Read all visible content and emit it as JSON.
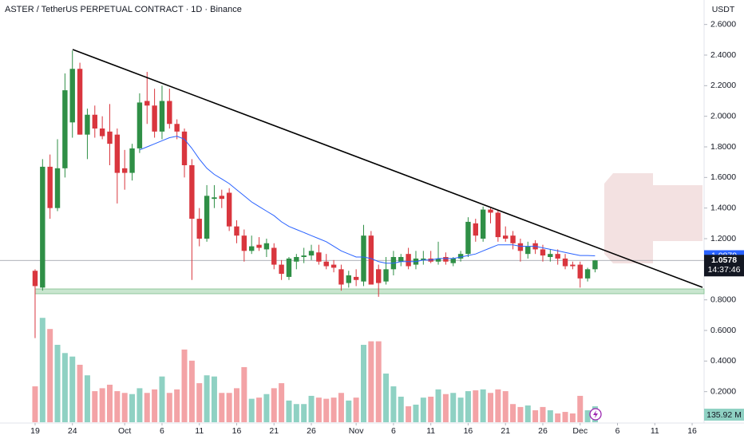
{
  "chart_data": {
    "type": "candlestick",
    "title": "ASTER / TetherUS PERPETUAL CONTRACT · 1D · Binance",
    "currency": "USDT",
    "up_color": "#2f8f46",
    "down_color": "#d9363e",
    "volume_up_color": "#8fd1c3",
    "volume_down_color": "#f3a3a6",
    "open": [
      0.99,
      0.88,
      1.67,
      1.4,
      1.66,
      1.96,
      2.31,
      1.88,
      2.01,
      1.92,
      1.9,
      1.88,
      1.66,
      1.63,
      1.79,
      2.1,
      2.07,
      1.9,
      2.1,
      1.95,
      1.9,
      1.68,
      1.33,
      1.2,
      1.46,
      1.48,
      1.5,
      1.28,
      1.22,
      1.12,
      1.16,
      1.13,
      1.14,
      1.03,
      0.95,
      1.05,
      1.08,
      1.09,
      1.11,
      1.05,
      1.03,
      1.0,
      0.91,
      0.95,
      0.92,
      1.22,
      1.0,
      0.92,
      1.0,
      1.05,
      1.1,
      1.03,
      1.06,
      1.07,
      1.05,
      1.08,
      1.04,
      1.07,
      1.1,
      1.3,
      1.2,
      1.39,
      1.37,
      1.22,
      1.22,
      1.17,
      1.1,
      1.17,
      1.13,
      1.08,
      1.1,
      1.07,
      1.03,
      1.03,
      0.94,
      1.0
    ],
    "high": [
      1.0,
      1.72,
      1.75,
      1.85,
      2.28,
      2.43,
      2.35,
      2.05,
      2.07,
      2.0,
      2.08,
      1.92,
      1.78,
      1.82,
      2.15,
      2.29,
      2.18,
      2.2,
      2.18,
      1.98,
      1.92,
      1.72,
      1.4,
      1.55,
      1.55,
      1.52,
      1.53,
      1.32,
      1.26,
      1.22,
      1.21,
      1.2,
      1.17,
      1.06,
      1.08,
      1.1,
      1.14,
      1.16,
      1.16,
      1.1,
      1.06,
      1.03,
      0.99,
      1.0,
      1.29,
      1.25,
      1.03,
      1.08,
      1.12,
      1.1,
      1.14,
      1.12,
      1.12,
      1.12,
      1.18,
      1.11,
      1.08,
      1.12,
      1.34,
      1.33,
      1.41,
      1.4,
      1.39,
      1.28,
      1.25,
      1.2,
      1.18,
      1.19,
      1.16,
      1.13,
      1.13,
      1.1,
      1.05,
      1.05,
      1.01,
      1.06
    ],
    "low": [
      0.55,
      0.86,
      1.33,
      1.38,
      1.6,
      1.86,
      1.88,
      1.72,
      1.86,
      1.85,
      1.68,
      1.43,
      1.52,
      1.58,
      1.76,
      1.95,
      1.86,
      1.85,
      1.92,
      1.85,
      1.6,
      0.93,
      1.15,
      1.18,
      1.4,
      1.4,
      1.25,
      1.17,
      1.05,
      1.1,
      1.12,
      1.08,
      1.0,
      0.93,
      0.93,
      1.0,
      1.04,
      1.06,
      1.03,
      1.0,
      0.98,
      0.86,
      0.88,
      0.89,
      0.89,
      0.9,
      0.82,
      0.9,
      0.96,
      1.02,
      1.0,
      1.0,
      1.03,
      1.04,
      1.03,
      1.03,
      1.02,
      1.05,
      1.08,
      1.18,
      1.18,
      1.3,
      1.18,
      1.18,
      1.13,
      1.05,
      1.07,
      1.1,
      1.05,
      1.05,
      1.03,
      1.0,
      1.0,
      0.88,
      0.92,
      0.98
    ],
    "close": [
      0.89,
      1.67,
      1.4,
      1.66,
      2.17,
      2.31,
      1.88,
      2.01,
      1.92,
      1.87,
      1.82,
      1.63,
      1.63,
      1.79,
      2.09,
      2.07,
      1.9,
      2.1,
      1.95,
      1.9,
      1.68,
      1.33,
      1.2,
      1.48,
      1.47,
      1.46,
      1.28,
      1.22,
      1.12,
      1.15,
      1.14,
      1.17,
      1.03,
      0.97,
      1.07,
      1.08,
      1.09,
      1.12,
      1.05,
      1.02,
      1.01,
      0.9,
      0.96,
      0.93,
      1.22,
      0.9,
      0.91,
      1.0,
      1.08,
      1.08,
      1.02,
      1.07,
      1.07,
      1.05,
      1.07,
      1.05,
      1.07,
      1.1,
      1.31,
      1.22,
      1.39,
      1.37,
      1.21,
      1.2,
      1.17,
      1.12,
      1.15,
      1.13,
      1.09,
      1.1,
      1.07,
      1.02,
      1.02,
      0.94,
      1.0,
      1.0578
    ],
    "volume": [
      306,
      890,
      795,
      660,
      590,
      560,
      490,
      400,
      265,
      290,
      320,
      265,
      250,
      240,
      290,
      250,
      280,
      390,
      250,
      280,
      620,
      525,
      333,
      400,
      390,
      250,
      250,
      290,
      470,
      200,
      210,
      240,
      290,
      333,
      185,
      155,
      155,
      225,
      210,
      200,
      210,
      250,
      185,
      210,
      660,
      690,
      690,
      415,
      306,
      218,
      136,
      150,
      210,
      218,
      280,
      240,
      250,
      210,
      265,
      272,
      280,
      250,
      280,
      265,
      155,
      130,
      143,
      102,
      130,
      102,
      75,
      88,
      75,
      225,
      102,
      135.92
    ],
    "last_volume_label": "135.92 M",
    "countdown": "14:37:46",
    "ma": {
      "color": "#2962ff",
      "values": [
        null,
        null,
        null,
        null,
        null,
        null,
        null,
        null,
        null,
        null,
        null,
        null,
        null,
        null,
        1.78,
        1.8,
        1.82,
        1.84,
        1.86,
        1.87,
        1.85,
        1.79,
        1.72,
        1.66,
        1.62,
        1.59,
        1.56,
        1.52,
        1.48,
        1.44,
        1.41,
        1.38,
        1.35,
        1.31,
        1.28,
        1.26,
        1.24,
        1.22,
        1.2,
        1.18,
        1.15,
        1.12,
        1.1,
        1.08,
        1.08,
        1.07,
        1.05,
        1.04,
        1.04,
        1.05,
        1.05,
        1.05,
        1.06,
        1.06,
        1.07,
        1.07,
        1.07,
        1.08,
        1.09,
        1.1,
        1.12,
        1.14,
        1.16,
        1.16,
        1.16,
        1.15,
        1.15,
        1.15,
        1.14,
        1.13,
        1.12,
        1.11,
        1.1,
        1.09,
        1.09,
        1.0879
      ]
    },
    "xlim": [
      -4.7,
      89.6
    ],
    "xticks": [
      {
        "value": 0,
        "label": "19"
      },
      {
        "value": 5,
        "label": "24"
      },
      {
        "value": 12,
        "label": "Oct"
      },
      {
        "value": 17,
        "label": "6"
      },
      {
        "value": 22,
        "label": "11"
      },
      {
        "value": 27,
        "label": "16"
      },
      {
        "value": 32,
        "label": "21"
      },
      {
        "value": 37,
        "label": "26"
      },
      {
        "value": 43,
        "label": "Nov"
      },
      {
        "value": 48,
        "label": "6"
      },
      {
        "value": 53,
        "label": "11"
      },
      {
        "value": 58,
        "label": "16"
      },
      {
        "value": 63,
        "label": "21"
      },
      {
        "value": 68,
        "label": "26"
      },
      {
        "value": 73,
        "label": "Dec"
      },
      {
        "value": 78,
        "label": "6"
      },
      {
        "value": 83,
        "label": "11"
      },
      {
        "value": 88,
        "label": "16"
      }
    ],
    "ylim": [
      0,
      2.76
    ],
    "yticks": [
      {
        "value": 0.2,
        "label": "0.2000"
      },
      {
        "value": 0.4,
        "label": "0.4000"
      },
      {
        "value": 0.6,
        "label": "0.6000"
      },
      {
        "value": 0.8,
        "label": "0.8000"
      },
      {
        "value": 1.2,
        "label": "1.2000"
      },
      {
        "value": 1.4,
        "label": "1.4000"
      },
      {
        "value": 1.6,
        "label": "1.6000"
      },
      {
        "value": 1.8,
        "label": "1.8000"
      },
      {
        "value": 2.0,
        "label": "2.0000"
      },
      {
        "value": 2.2,
        "label": "2.2000"
      },
      {
        "value": 2.4,
        "label": "2.4000"
      },
      {
        "value": 2.6,
        "label": "2.6000"
      }
    ],
    "volume_lim": [
      0,
      3600
    ]
  }
}
